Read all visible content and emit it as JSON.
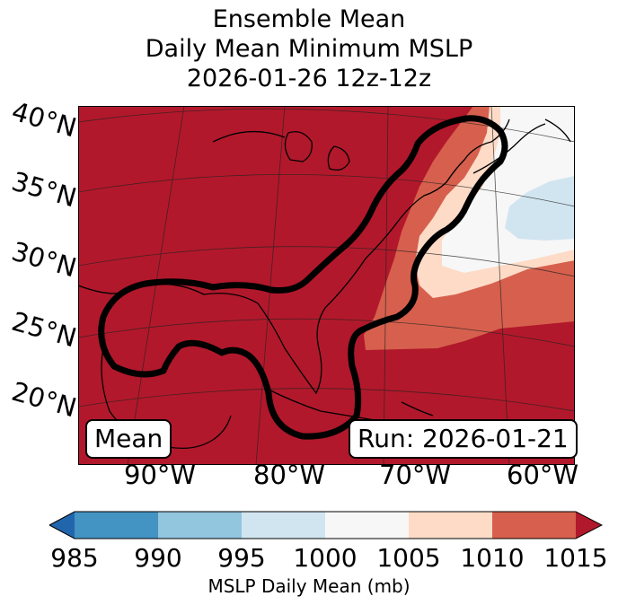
{
  "title": {
    "line1": "Ensemble Mean",
    "line2": "Daily Mean Minimum MSLP",
    "line3": "2026-01-26 12z-12z"
  },
  "map": {
    "lat_labels": [
      "40°N",
      "35°N",
      "30°N",
      "25°N",
      "20°N"
    ],
    "lon_labels": [
      "90°W",
      "80°W",
      "70°W",
      "60°W"
    ],
    "mean_label": "Mean",
    "run_label": "Run: 2026-01-21",
    "colors": {
      "c985": "#2166ac",
      "c990": "#4393c3",
      "c995": "#92c5de",
      "c1000": "#d1e5f0",
      "c1005": "#f7f7f7",
      "c1010": "#fddbc7",
      "c1015": "#d6604d",
      "cover": "#b2182b"
    }
  },
  "colorbar": {
    "ticks": [
      "985",
      "990",
      "995",
      "1000",
      "1005",
      "1010",
      "1015"
    ],
    "label": "MSLP Daily Mean (mb)"
  }
}
